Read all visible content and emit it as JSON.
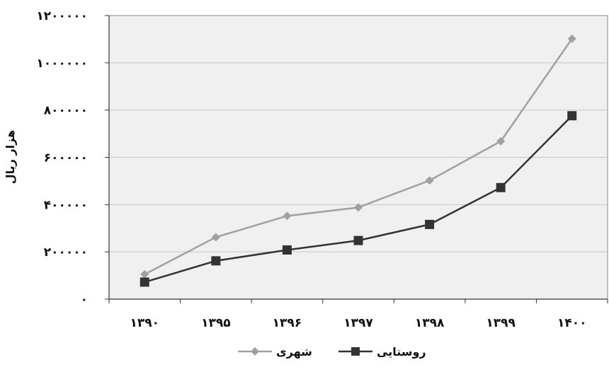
{
  "chart_data": {
    "type": "line",
    "categories": [
      "۱۳۹۰",
      "۱۳۹۵",
      "۱۳۹۶",
      "۱۳۹۷",
      "۱۳۹۸",
      "۱۳۹۹",
      "۱۴۰۰"
    ],
    "series": [
      {
        "name": "شهری",
        "values": [
          105000,
          262000,
          352000,
          388000,
          502000,
          668000,
          1102000
        ],
        "color": "#a0a0a0",
        "marker": "diamond"
      },
      {
        "name": "روستایی",
        "values": [
          72000,
          162000,
          208000,
          248000,
          316000,
          472000,
          776000
        ],
        "color": "#333333",
        "marker": "square"
      }
    ],
    "ylabel": "هزار ریال",
    "ylim": [
      0,
      1200000
    ],
    "yticks": [
      0,
      200000,
      400000,
      600000,
      800000,
      1000000,
      1200000
    ],
    "ytick_labels": [
      "۰",
      "۲۰۰۰۰۰",
      "۴۰۰۰۰۰",
      "۶۰۰۰۰۰",
      "۸۰۰۰۰۰",
      "۱۰۰۰۰۰۰",
      "۱۲۰۰۰۰۰"
    ],
    "grid": true,
    "plot_background": "#f0f0f0",
    "legend_position": "bottom-center"
  }
}
